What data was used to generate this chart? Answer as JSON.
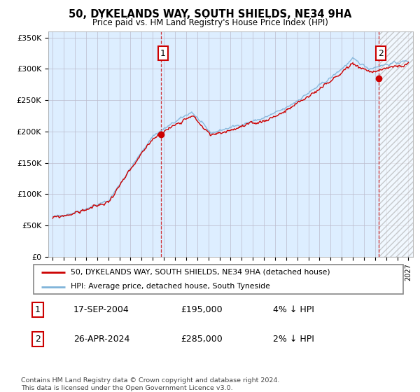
{
  "title": "50, DYKELANDS WAY, SOUTH SHIELDS, NE34 9HA",
  "subtitle": "Price paid vs. HM Land Registry's House Price Index (HPI)",
  "legend_line1": "50, DYKELANDS WAY, SOUTH SHIELDS, NE34 9HA (detached house)",
  "legend_line2": "HPI: Average price, detached house, South Tyneside",
  "transaction1_date": "17-SEP-2004",
  "transaction1_price": "£195,000",
  "transaction1_hpi": "4% ↓ HPI",
  "transaction2_date": "26-APR-2024",
  "transaction2_price": "£285,000",
  "transaction2_hpi": "2% ↓ HPI",
  "copyright": "Contains HM Land Registry data © Crown copyright and database right 2024.\nThis data is licensed under the Open Government Licence v3.0.",
  "hpi_color": "#7fb3d9",
  "price_color": "#cc0000",
  "marker_color": "#cc0000",
  "background_color": "#ffffff",
  "plot_bg_color": "#ddeeff",
  "grid_color": "#bbbbcc",
  "ylim": [
    0,
    360000
  ],
  "yticks": [
    0,
    50000,
    100000,
    150000,
    200000,
    250000,
    300000,
    350000
  ],
  "ytick_labels": [
    "£0",
    "£50K",
    "£100K",
    "£150K",
    "£200K",
    "£250K",
    "£300K",
    "£350K"
  ],
  "transaction1_year": 2004.72,
  "transaction2_year": 2024.32,
  "transaction1_value": 195000,
  "transaction2_value": 285000,
  "hatch_start": 2024.4,
  "xmin": 1994.6,
  "xmax": 2027.4
}
